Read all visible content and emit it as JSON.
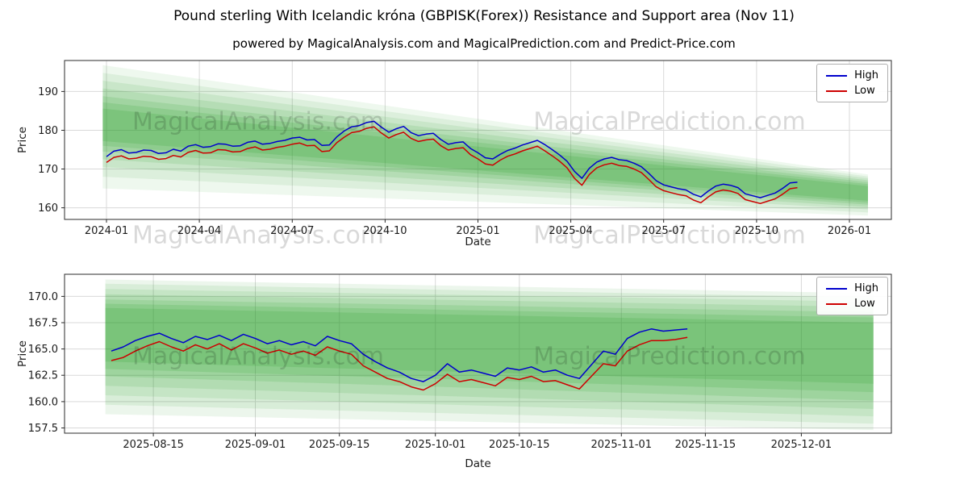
{
  "header": {
    "title": "Pound sterling With Icelandic króna (GBPISK(Forex)) Resistance and Support area (Nov 11)",
    "subtitle": "powered by MagicalAnalysis.com and MagicalPrediction.com and Predict-Price.com"
  },
  "watermarks": {
    "left": "MagicalAnalysis.com",
    "right": "MagicalPrediction.com"
  },
  "chart_data": [
    {
      "type": "line",
      "title": "",
      "xlabel": "Date",
      "ylabel": "Price",
      "xlim": [
        2023.887,
        2026.113
      ],
      "ylim": [
        157.0,
        198.0
      ],
      "xticks": [
        2024.0,
        2024.25,
        2024.5,
        2024.75,
        2025.0,
        2025.25,
        2025.5,
        2025.75,
        2026.0
      ],
      "xtick_labels": [
        "2024-01",
        "2024-04",
        "2024-07",
        "2024-10",
        "2025-01",
        "2025-04",
        "2025-07",
        "2025-10",
        "2026-01"
      ],
      "yticks": [
        160,
        170,
        180,
        190
      ],
      "ytick_labels": [
        "160",
        "170",
        "180",
        "190"
      ],
      "grid": true,
      "legend_position": "upper right",
      "band_color": "#2ca02c",
      "bands": [
        {
          "x0": 2023.99,
          "x1": 2026.05,
          "top0": 196.8,
          "top1": 168.6,
          "bot0": 165.0,
          "bot1": 158.0,
          "alpha": 0.08
        },
        {
          "x0": 2023.99,
          "x1": 2026.05,
          "top0": 194.8,
          "top1": 168.1,
          "bot0": 168.0,
          "bot1": 158.8,
          "alpha": 0.09
        },
        {
          "x0": 2023.99,
          "x1": 2026.05,
          "top0": 192.8,
          "top1": 167.6,
          "bot0": 170.5,
          "bot1": 159.6,
          "alpha": 0.1
        },
        {
          "x0": 2023.99,
          "x1": 2026.05,
          "top0": 190.8,
          "top1": 167.1,
          "bot0": 172.5,
          "bot1": 160.2,
          "alpha": 0.12
        },
        {
          "x0": 2023.99,
          "x1": 2026.05,
          "top0": 188.8,
          "top1": 166.6,
          "bot0": 174.5,
          "bot1": 160.8,
          "alpha": 0.14
        },
        {
          "x0": 2023.99,
          "x1": 2026.05,
          "top0": 187.2,
          "top1": 166.1,
          "bot0": 176.0,
          "bot1": 161.3,
          "alpha": 0.16
        },
        {
          "x0": 2023.99,
          "x1": 2026.05,
          "top0": 185.6,
          "top1": 165.6,
          "bot0": 177.2,
          "bot1": 161.8,
          "alpha": 0.18
        }
      ],
      "x": {
        "start": 2024.0,
        "step": 0.02,
        "count": 94
      },
      "series": [
        {
          "name": "High",
          "color": "#0000cd",
          "values": [
            173.2,
            174.6,
            175.0,
            174.1,
            174.3,
            174.9,
            174.8,
            174.0,
            174.2,
            175.1,
            174.6,
            175.9,
            176.3,
            175.6,
            175.8,
            176.5,
            176.4,
            175.9,
            176.0,
            176.9,
            177.2,
            176.4,
            176.6,
            177.1,
            177.4,
            178.0,
            178.2,
            177.5,
            177.6,
            176.1,
            176.2,
            178.3,
            179.8,
            180.9,
            181.2,
            182.0,
            182.3,
            180.8,
            179.5,
            180.4,
            181.0,
            179.4,
            178.6,
            179.0,
            179.2,
            177.6,
            176.4,
            176.8,
            177.0,
            175.3,
            174.2,
            172.9,
            172.6,
            173.8,
            174.8,
            175.4,
            176.2,
            176.8,
            177.4,
            176.3,
            175.0,
            173.6,
            172.0,
            169.4,
            167.6,
            170.2,
            171.8,
            172.6,
            173.0,
            172.4,
            172.2,
            171.5,
            170.6,
            168.9,
            167.0,
            165.9,
            165.4,
            164.9,
            164.6,
            163.5,
            162.8,
            164.3,
            165.6,
            166.1,
            165.8,
            165.2,
            163.6,
            163.1,
            162.6,
            163.2,
            163.8,
            165.0,
            166.4,
            166.6
          ]
        },
        {
          "name": "Low",
          "color": "#cd0000",
          "values": [
            171.7,
            173.0,
            173.4,
            172.6,
            172.8,
            173.3,
            173.2,
            172.5,
            172.7,
            173.5,
            173.1,
            174.3,
            174.8,
            174.1,
            174.2,
            175.0,
            174.9,
            174.4,
            174.5,
            175.3,
            175.7,
            174.9,
            175.1,
            175.6,
            175.9,
            176.4,
            176.7,
            176.0,
            176.1,
            174.5,
            174.7,
            176.8,
            178.2,
            179.4,
            179.7,
            180.5,
            180.9,
            179.3,
            178.0,
            178.9,
            179.5,
            177.9,
            177.1,
            177.5,
            177.7,
            176.0,
            174.9,
            175.3,
            175.5,
            173.7,
            172.6,
            171.3,
            171.0,
            172.3,
            173.3,
            173.9,
            174.7,
            175.3,
            175.9,
            174.7,
            173.4,
            172.0,
            170.3,
            167.6,
            165.8,
            168.6,
            170.3,
            171.1,
            171.5,
            170.9,
            170.7,
            170.0,
            169.1,
            167.3,
            165.4,
            164.4,
            163.9,
            163.4,
            163.1,
            162.0,
            161.3,
            162.8,
            164.1,
            164.6,
            164.3,
            163.7,
            162.1,
            161.6,
            161.1,
            161.7,
            162.3,
            163.5,
            164.9,
            165.2
          ]
        }
      ]
    },
    {
      "type": "line",
      "title": "",
      "xlabel": "Date",
      "ylabel": "Price",
      "xlim": [
        -0.8,
        137.0
      ],
      "ylim": [
        157.0,
        172.1
      ],
      "xticks": [
        14,
        31,
        45,
        61,
        75,
        92,
        106,
        122
      ],
      "xtick_labels": [
        "2025-08-15",
        "2025-09-01",
        "2025-09-15",
        "2025-10-01",
        "2025-10-15",
        "2025-11-01",
        "2025-11-15",
        "2025-12-01"
      ],
      "yticks": [
        157.5,
        160.0,
        162.5,
        165.0,
        167.5,
        170.0
      ],
      "ytick_labels": [
        "157.5",
        "160.0",
        "162.5",
        "165.0",
        "167.5",
        "170.0"
      ],
      "grid": true,
      "legend_position": "upper right",
      "band_color": "#2ca02c",
      "bands": [
        {
          "x0": 6,
          "x1": 134,
          "top0": 171.6,
          "top1": 170.3,
          "bot0": 158.8,
          "bot1": 157.3,
          "alpha": 0.09
        },
        {
          "x0": 6,
          "x1": 134,
          "top0": 171.2,
          "top1": 169.9,
          "bot0": 159.7,
          "bot1": 157.9,
          "alpha": 0.1
        },
        {
          "x0": 6,
          "x1": 134,
          "top0": 170.7,
          "top1": 169.5,
          "bot0": 160.6,
          "bot1": 158.6,
          "alpha": 0.11
        },
        {
          "x0": 6,
          "x1": 134,
          "top0": 170.2,
          "top1": 169.0,
          "bot0": 161.5,
          "bot1": 159.3,
          "alpha": 0.12
        },
        {
          "x0": 6,
          "x1": 134,
          "top0": 169.7,
          "top1": 168.5,
          "bot0": 162.4,
          "bot1": 160.1,
          "alpha": 0.14
        },
        {
          "x0": 6,
          "x1": 134,
          "top0": 169.3,
          "top1": 168.0,
          "bot0": 163.1,
          "bot1": 160.9,
          "alpha": 0.16
        },
        {
          "x0": 6,
          "x1": 134,
          "top0": 168.9,
          "top1": 167.5,
          "bot0": 163.8,
          "bot1": 161.7,
          "alpha": 0.18
        }
      ],
      "x": {
        "start": 7,
        "step": 2,
        "count": 49
      },
      "series": [
        {
          "name": "High",
          "color": "#0000cd",
          "values": [
            164.8,
            165.2,
            165.8,
            166.2,
            166.5,
            166.0,
            165.6,
            166.2,
            165.9,
            166.3,
            165.8,
            166.4,
            166.0,
            165.5,
            165.8,
            165.4,
            165.7,
            165.3,
            166.2,
            165.8,
            165.5,
            164.5,
            163.8,
            163.2,
            162.8,
            162.2,
            161.9,
            162.5,
            163.6,
            162.8,
            163.0,
            162.7,
            162.4,
            163.2,
            163.0,
            163.3,
            162.8,
            163.0,
            162.5,
            162.2,
            163.5,
            164.8,
            164.5,
            166.0,
            166.6,
            166.9,
            166.7,
            166.8,
            166.9
          ]
        },
        {
          "name": "Low",
          "color": "#cd0000",
          "values": [
            163.9,
            164.2,
            164.8,
            165.3,
            165.7,
            165.2,
            164.8,
            165.4,
            165.0,
            165.5,
            164.9,
            165.5,
            165.1,
            164.6,
            164.9,
            164.5,
            164.8,
            164.4,
            165.2,
            164.8,
            164.5,
            163.4,
            162.8,
            162.2,
            161.9,
            161.4,
            161.1,
            161.7,
            162.6,
            161.9,
            162.1,
            161.8,
            161.5,
            162.3,
            162.1,
            162.4,
            161.9,
            162.0,
            161.6,
            161.2,
            162.4,
            163.6,
            163.4,
            164.8,
            165.4,
            165.8,
            165.8,
            165.9,
            166.1
          ]
        }
      ]
    }
  ]
}
